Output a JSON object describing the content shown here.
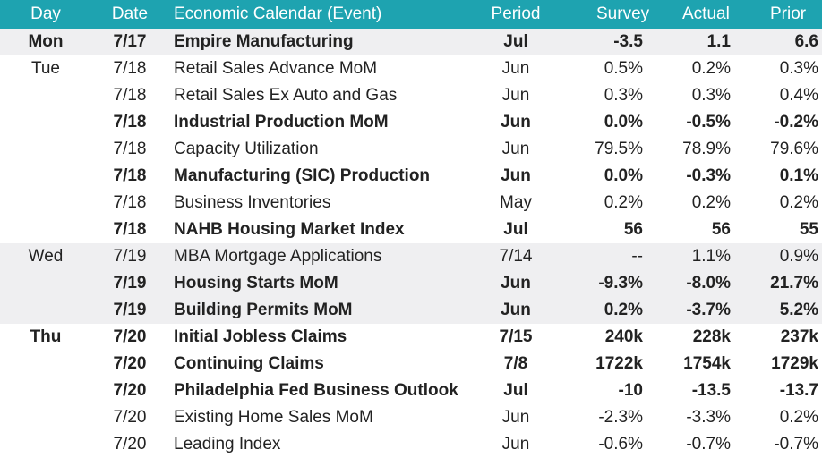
{
  "headers": {
    "day": "Day",
    "date": "Date",
    "event": "Economic Calendar (Event)",
    "period": "Period",
    "survey": "Survey",
    "actual": "Actual",
    "prior": "Prior"
  },
  "rows": [
    {
      "day": "Mon",
      "date": "7/17",
      "event": "Empire Manufacturing",
      "period": "Jul",
      "survey": "-3.5",
      "actual": "1.1",
      "prior": "6.6",
      "bold": true,
      "shaded": true
    },
    {
      "day": "Tue",
      "date": "7/18",
      "event": "Retail Sales Advance MoM",
      "period": "Jun",
      "survey": "0.5%",
      "actual": "0.2%",
      "prior": "0.3%",
      "bold": false,
      "shaded": false
    },
    {
      "day": "",
      "date": "7/18",
      "event": "Retail Sales Ex Auto and Gas",
      "period": "Jun",
      "survey": "0.3%",
      "actual": "0.3%",
      "prior": "0.4%",
      "bold": false,
      "shaded": false
    },
    {
      "day": "",
      "date": "7/18",
      "event": "Industrial Production MoM",
      "period": "Jun",
      "survey": "0.0%",
      "actual": "-0.5%",
      "prior": "-0.2%",
      "bold": true,
      "shaded": false
    },
    {
      "day": "",
      "date": "7/18",
      "event": "Capacity Utilization",
      "period": "Jun",
      "survey": "79.5%",
      "actual": "78.9%",
      "prior": "79.6%",
      "bold": false,
      "shaded": false
    },
    {
      "day": "",
      "date": "7/18",
      "event": "Manufacturing (SIC) Production",
      "period": "Jun",
      "survey": "0.0%",
      "actual": "-0.3%",
      "prior": "0.1%",
      "bold": true,
      "shaded": false
    },
    {
      "day": "",
      "date": "7/18",
      "event": "Business Inventories",
      "period": "May",
      "survey": "0.2%",
      "actual": "0.2%",
      "prior": "0.2%",
      "bold": false,
      "shaded": false
    },
    {
      "day": "",
      "date": "7/18",
      "event": "NAHB Housing Market Index",
      "period": "Jul",
      "survey": "56",
      "actual": "56",
      "prior": "55",
      "bold": true,
      "shaded": false
    },
    {
      "day": "Wed",
      "date": "7/19",
      "event": "MBA Mortgage Applications",
      "period": "7/14",
      "survey": "--",
      "actual": "1.1%",
      "prior": "0.9%",
      "bold": false,
      "shaded": true
    },
    {
      "day": "",
      "date": "7/19",
      "event": "Housing Starts MoM",
      "period": "Jun",
      "survey": "-9.3%",
      "actual": "-8.0%",
      "prior": "21.7%",
      "bold": true,
      "shaded": true
    },
    {
      "day": "",
      "date": "7/19",
      "event": "Building Permits MoM",
      "period": "Jun",
      "survey": "0.2%",
      "actual": "-3.7%",
      "prior": "5.2%",
      "bold": true,
      "shaded": true
    },
    {
      "day": "Thu",
      "date": "7/20",
      "event": "Initial Jobless Claims",
      "period": "7/15",
      "survey": "240k",
      "actual": "228k",
      "prior": "237k",
      "bold": true,
      "shaded": false
    },
    {
      "day": "",
      "date": "7/20",
      "event": "Continuing Claims",
      "period": "7/8",
      "survey": "1722k",
      "actual": "1754k",
      "prior": "1729k",
      "bold": true,
      "shaded": false
    },
    {
      "day": "",
      "date": "7/20",
      "event": "Philadelphia Fed Business Outlook",
      "period": "Jul",
      "survey": "-10",
      "actual": "-13.5",
      "prior": "-13.7",
      "bold": true,
      "shaded": false
    },
    {
      "day": "",
      "date": "7/20",
      "event": "Existing Home Sales MoM",
      "period": "Jun",
      "survey": "-2.3%",
      "actual": "-3.3%",
      "prior": "0.2%",
      "bold": false,
      "shaded": false
    },
    {
      "day": "",
      "date": "7/20",
      "event": "Leading Index",
      "period": "Jun",
      "survey": "-0.6%",
      "actual": "-0.7%",
      "prior": "-0.7%",
      "bold": false,
      "shaded": false
    }
  ]
}
